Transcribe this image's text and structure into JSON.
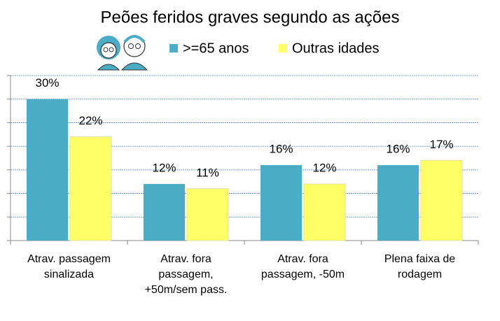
{
  "chart_data": {
    "type": "bar",
    "title": "Peões feridos graves segundo as ações",
    "categories": [
      "Atrav. passagem sinalizada",
      "Atrav. fora passagem, +50m/sem pass.",
      "Atrav. fora passagem, -50m",
      "Plena faixa de rodagem"
    ],
    "series": [
      {
        "name": ">=65 anos",
        "color": "#4bacc6",
        "values": [
          30,
          12,
          16,
          16
        ],
        "value_labels": [
          "30%",
          "12%",
          "16%",
          "16%"
        ]
      },
      {
        "name": "Outras idades",
        "color": "#ffff66",
        "values": [
          22,
          11,
          12,
          17
        ],
        "value_labels": [
          "22%",
          "11%",
          "12%",
          "17%"
        ]
      }
    ],
    "ylim": [
      0,
      35
    ],
    "yticks": [
      0,
      5,
      10,
      15,
      20,
      25,
      30,
      35
    ],
    "grid": true
  }
}
